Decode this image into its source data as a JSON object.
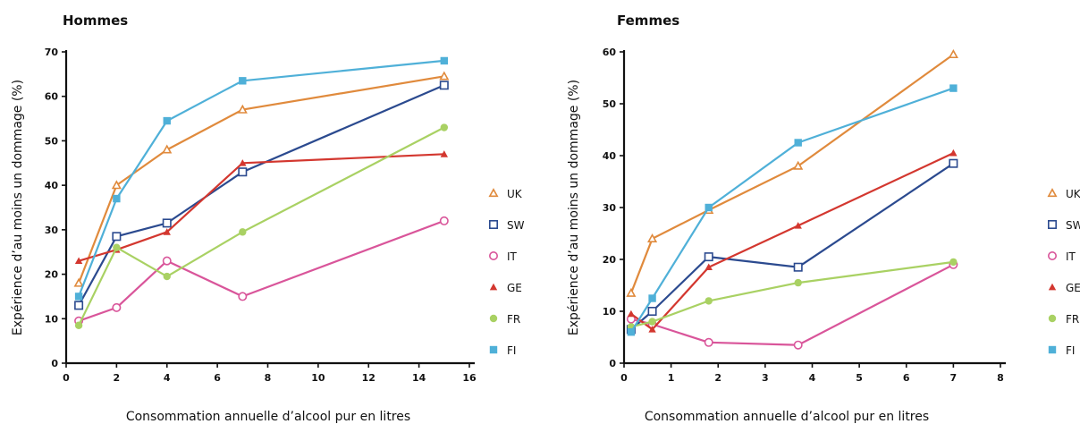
{
  "chart_data": [
    {
      "type": "line",
      "title": "Hommes",
      "xlabel": "Consommation annuelle d’alcool pur en litres",
      "ylabel": "Expérience d’au moins un dommage (%)",
      "xlim": [
        0,
        16
      ],
      "ylim": [
        0,
        70
      ],
      "xticks": [
        "0",
        "2",
        "4",
        "6",
        "8",
        "10",
        "12",
        "14",
        "16"
      ],
      "yticks": [
        "0",
        "10",
        "20",
        "30",
        "40",
        "50",
        "60",
        "70"
      ],
      "grid": false,
      "legend_position": "right",
      "series": [
        {
          "name": "UK",
          "color": "#e08a3c",
          "marker": "triangle-open",
          "points": [
            [
              0.5,
              18
            ],
            [
              2,
              40
            ],
            [
              4,
              48
            ],
            [
              7,
              57
            ],
            [
              15,
              64.5
            ]
          ]
        },
        {
          "name": "SW",
          "color": "#2b4a8f",
          "marker": "square-open",
          "points": [
            [
              0.5,
              13
            ],
            [
              2,
              28.5
            ],
            [
              4,
              31.5
            ],
            [
              7,
              43
            ],
            [
              15,
              62.5
            ]
          ]
        },
        {
          "name": "IT",
          "color": "#d9559a",
          "marker": "circle-open",
          "points": [
            [
              0.5,
              9.5
            ],
            [
              2,
              12.5
            ],
            [
              4,
              23
            ],
            [
              7,
              15
            ],
            [
              15,
              32
            ]
          ]
        },
        {
          "name": "GE",
          "color": "#d3372f",
          "marker": "triangle-filled",
          "points": [
            [
              0.5,
              23
            ],
            [
              2,
              25.5
            ],
            [
              4,
              29.5
            ],
            [
              7,
              45
            ],
            [
              15,
              47
            ]
          ]
        },
        {
          "name": "FR",
          "color": "#a9d163",
          "marker": "circle-filled",
          "points": [
            [
              0.5,
              8.5
            ],
            [
              2,
              26
            ],
            [
              4,
              19.5
            ],
            [
              7,
              29.5
            ],
            [
              15,
              53
            ]
          ]
        },
        {
          "name": "FI",
          "color": "#4fb0d8",
          "marker": "square-filled",
          "points": [
            [
              0.5,
              15
            ],
            [
              2,
              37
            ],
            [
              4,
              54.5
            ],
            [
              7,
              63.5
            ],
            [
              15,
              68
            ]
          ]
        }
      ]
    },
    {
      "type": "line",
      "title": "Femmes",
      "xlabel": "Consommation annuelle d’alcool pur en litres",
      "ylabel": "Expérience d’au moins un dommage (%)",
      "xlim": [
        0,
        8
      ],
      "ylim": [
        0,
        60
      ],
      "xticks": [
        "0",
        "1",
        "2",
        "3",
        "4",
        "5",
        "6",
        "7",
        "8"
      ],
      "yticks": [
        "0",
        "10",
        "20",
        "30",
        "40",
        "50",
        "60"
      ],
      "grid": false,
      "legend_position": "right",
      "series": [
        {
          "name": "UK",
          "color": "#e08a3c",
          "marker": "triangle-open",
          "points": [
            [
              0.15,
              13.5
            ],
            [
              0.6,
              24
            ],
            [
              1.8,
              29.5
            ],
            [
              3.7,
              38
            ],
            [
              7,
              59.5
            ]
          ]
        },
        {
          "name": "SW",
          "color": "#2b4a8f",
          "marker": "square-open",
          "points": [
            [
              0.15,
              6.5
            ],
            [
              0.6,
              10
            ],
            [
              1.8,
              20.5
            ],
            [
              3.7,
              18.5
            ],
            [
              7,
              38.5
            ]
          ]
        },
        {
          "name": "IT",
          "color": "#d9559a",
          "marker": "circle-open",
          "points": [
            [
              0.15,
              8.5
            ],
            [
              0.6,
              7.5
            ],
            [
              1.8,
              4
            ],
            [
              3.7,
              3.5
            ],
            [
              7,
              19
            ]
          ]
        },
        {
          "name": "GE",
          "color": "#d3372f",
          "marker": "triangle-filled",
          "points": [
            [
              0.15,
              9.5
            ],
            [
              0.6,
              6.5
            ],
            [
              1.8,
              18.5
            ],
            [
              3.7,
              26.5
            ],
            [
              7,
              40.5
            ]
          ]
        },
        {
          "name": "FR",
          "color": "#a9d163",
          "marker": "circle-filled",
          "points": [
            [
              0.15,
              7
            ],
            [
              0.6,
              8
            ],
            [
              1.8,
              12
            ],
            [
              3.7,
              15.5
            ],
            [
              7,
              19.5
            ]
          ]
        },
        {
          "name": "FI",
          "color": "#4fb0d8",
          "marker": "square-filled",
          "points": [
            [
              0.15,
              6
            ],
            [
              0.6,
              12.5
            ],
            [
              1.8,
              30
            ],
            [
              3.7,
              42.5
            ],
            [
              7,
              53
            ]
          ]
        }
      ]
    }
  ]
}
